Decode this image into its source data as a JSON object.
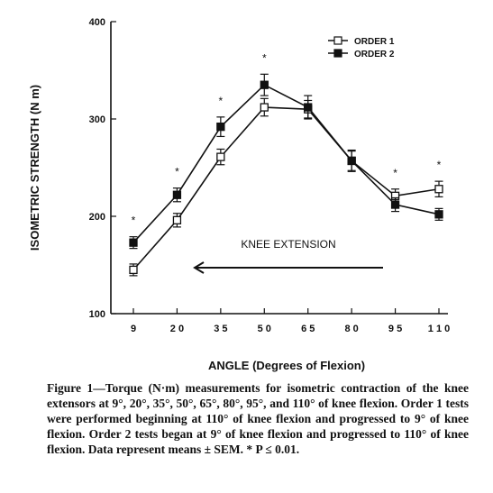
{
  "chart_data": {
    "type": "line",
    "title": "",
    "xlabel": "ANGLE (Degrees of Flexion)",
    "ylabel": "ISOMETRIC STRENGTH (N m)",
    "categories": [
      "9",
      "20",
      "35",
      "50",
      "65",
      "80",
      "95",
      "110"
    ],
    "x_tick_labels": [
      "9",
      "2 0",
      "3 5",
      "5 0",
      "6 5",
      "8 0",
      "9 5",
      "1 1 0"
    ],
    "y_ticks": [
      100,
      200,
      300,
      400
    ],
    "y_tick_labels": [
      "100",
      "200",
      "300",
      "400"
    ],
    "ylim": [
      100,
      400
    ],
    "grid": false,
    "legend_position": "top-right",
    "series": [
      {
        "name": "ORDER 1",
        "marker": "open-square",
        "values": [
          145,
          196,
          261,
          312,
          310,
          257,
          221,
          228
        ],
        "sem": [
          6,
          7,
          8,
          9,
          9,
          10,
          7,
          8
        ]
      },
      {
        "name": "ORDER 2",
        "marker": "filled-square",
        "values": [
          173,
          222,
          292,
          335,
          312,
          257,
          212,
          202
        ],
        "sem": [
          6,
          7,
          10,
          11,
          12,
          11,
          7,
          6
        ]
      }
    ],
    "significance_marker": "*",
    "significant_categories": [
      "9",
      "20",
      "35",
      "50",
      "95",
      "110"
    ],
    "annotation": {
      "text": "KNEE EXTENSION",
      "arrow_direction": "left"
    }
  },
  "colors": {
    "ink": "#111111",
    "background": "#ffffff"
  },
  "caption": "Figure 1—Torque (N·m) measurements for isometric contraction of the knee extensors at 9°, 20°, 35°, 50°, 65°, 80°, 95°, and 110° of knee flexion. Order 1 tests were performed beginning at 110° of knee flexion and progressed to 9° of knee flexion. Order 2 tests began at 9° of knee flexion and progressed to 110° of knee flexion. Data represent means ± SEM. * P ≤ 0.01."
}
